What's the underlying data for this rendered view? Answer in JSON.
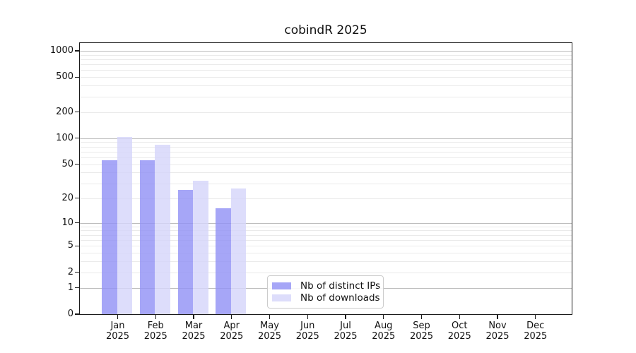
{
  "chart_data": {
    "type": "bar",
    "title": "cobindR 2025",
    "categories": [
      "Jan",
      "Feb",
      "Mar",
      "Apr",
      "May",
      "Jun",
      "Jul",
      "Aug",
      "Sep",
      "Oct",
      "Nov",
      "Dec"
    ],
    "year_label": "2025",
    "series": [
      {
        "name": "Nb of distinct IPs",
        "color": "rgba(146,146,245,0.82)",
        "color_hex": "#a5a5f7",
        "values": [
          56,
          56,
          25,
          15,
          null,
          null,
          null,
          null,
          null,
          null,
          null,
          null
        ]
      },
      {
        "name": "Nb of downloads",
        "color": "rgba(213,213,250,0.82)",
        "color_hex": "#dcdcfa",
        "values": [
          103,
          84,
          32,
          26,
          null,
          null,
          null,
          null,
          null,
          null,
          null,
          null
        ]
      }
    ],
    "y_axis": {
      "scale": "log10(1+x)",
      "ticks": [
        0,
        1,
        2,
        5,
        10,
        20,
        50,
        100,
        200,
        500,
        1000
      ],
      "ylim": [
        0,
        1225
      ]
    },
    "x_axis": {
      "tick_label_format": "month newline year"
    },
    "grid": {
      "horizontal": true,
      "major_at": [
        1,
        10,
        100,
        1000
      ],
      "minor_at_multiples": [
        2,
        3,
        4,
        5,
        6,
        7,
        8,
        9
      ],
      "legend_position": "inside lower-center"
    }
  },
  "colors": {
    "background": "#ffffff",
    "grid_major": "#bdbdbd",
    "grid_minor": "#eaeaea",
    "axis_border": "#1a1a1a",
    "text": "#111111",
    "legend_border": "#cccccc"
  }
}
